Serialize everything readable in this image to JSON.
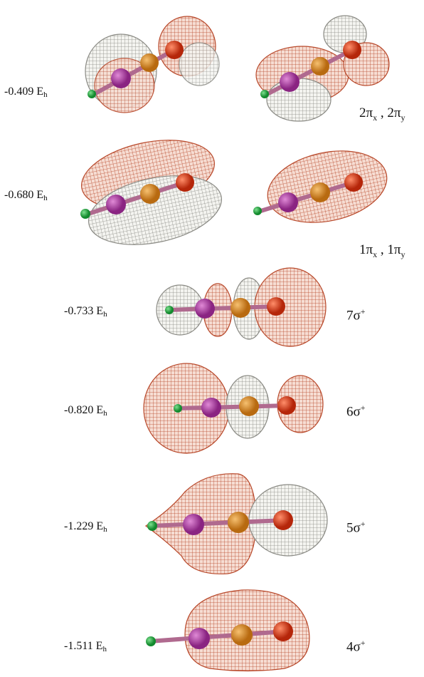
{
  "orbitals": [
    {
      "id": "2pi",
      "energy_value": "-0.409",
      "energy_unit": "E",
      "energy_unit_sub": "h",
      "label_text": "2π",
      "label_sub_x": "x",
      "label_sep": " , ",
      "label_text2": "2π",
      "label_sub_y": "y"
    },
    {
      "id": "1pi",
      "energy_value": "-0.680",
      "energy_unit": "E",
      "energy_unit_sub": "h",
      "label_text": "1π",
      "label_sub_x": "x",
      "label_sep": " , ",
      "label_text2": "1π",
      "label_sub_y": "y"
    },
    {
      "id": "7sigma",
      "energy_value": "-0.733",
      "energy_unit": "E",
      "energy_unit_sub": "h",
      "label_text": "7σ",
      "label_sup": "+"
    },
    {
      "id": "6sigma",
      "energy_value": "-0.820",
      "energy_unit": "E",
      "energy_unit_sub": "h",
      "label_text": "6σ",
      "label_sup": "+"
    },
    {
      "id": "5sigma",
      "energy_value": "-1.229",
      "energy_unit": "E",
      "energy_unit_sub": "h",
      "label_text": "5σ",
      "label_sup": "+"
    },
    {
      "id": "4sigma",
      "energy_value": "-1.511",
      "energy_unit": "E",
      "energy_unit_sub": "h",
      "label_text": "4σ",
      "label_sup": "+"
    }
  ],
  "colors": {
    "positive_lobe": "#c9532f",
    "negative_lobe": "#9a9a94",
    "atom_h": "#19a33a",
    "atom_c1": "#a8389e",
    "atom_c2": "#d7861c",
    "atom_o": "#dc3a14"
  }
}
